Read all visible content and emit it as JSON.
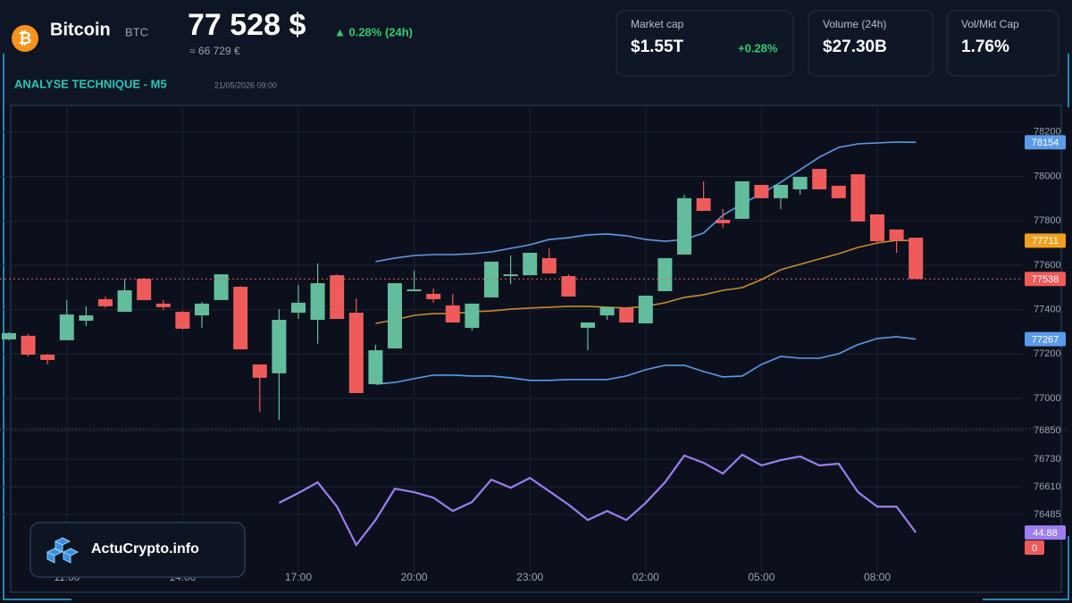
{
  "header": {
    "icon": "₿",
    "name": "Bitcoin",
    "symbol": "BTC",
    "price": "77 528 $",
    "change": "▲ 0.28% (24h)",
    "price_eur": "≈ 66 729 €",
    "section": "ANALYSE TECHNIQUE - M5",
    "date": "21/05/2026 09:00"
  },
  "stats": [
    {
      "label": "Market cap",
      "value": "$1.55T",
      "change": "+0.28%"
    },
    {
      "label": "Volume (24h)",
      "value": "$27.30B"
    },
    {
      "label": "Vol/Mkt Cap",
      "value": "1.76%"
    }
  ],
  "logo": "ActuCrypto.info",
  "chart_data": [
    {
      "type": "candlestick",
      "categories": [
        null,
        null,
        null,
        "11:00",
        null,
        null,
        null,
        null,
        null,
        "14:00",
        null,
        null,
        null,
        null,
        null,
        "17:00",
        null,
        null,
        null,
        null,
        null,
        "20:00",
        null,
        null,
        null,
        null,
        null,
        "23:00",
        null,
        null,
        null,
        null,
        null,
        "02:00",
        null,
        null,
        null,
        null,
        null,
        "05:00",
        null,
        null,
        null,
        null,
        null,
        "08:00",
        null,
        null
      ],
      "open": [
        77266,
        77282,
        77197,
        77262,
        77350,
        77447,
        77390,
        77539,
        77427,
        77390,
        77374,
        77443,
        77503,
        77153,
        77113,
        77386,
        77354,
        77555,
        77386,
        77064,
        77225,
        77483,
        77471,
        77419,
        77318,
        77455,
        77551,
        77555,
        77632,
        77551,
        77318,
        77374,
        77407,
        77338,
        77483,
        77648,
        77902,
        77805,
        77809,
        77962,
        77902,
        77942,
        78034,
        77958,
        78010,
        77829,
        77761,
        77724
      ],
      "high": [
        77298,
        77290,
        77201,
        77443,
        77415,
        77459,
        77539,
        77543,
        77443,
        77394,
        77435,
        77559,
        77507,
        77153,
        77402,
        77511,
        77608,
        77559,
        77451,
        77242,
        77519,
        77575,
        77495,
        77471,
        77427,
        77616,
        77644,
        77656,
        77676,
        77559,
        77342,
        77411,
        77407,
        77463,
        77632,
        77918,
        77978,
        77853,
        77978,
        77962,
        77962,
        77998,
        78034,
        77958,
        78010,
        77829,
        77761,
        77724
      ],
      "low": [
        77262,
        77189,
        77153,
        77262,
        77326,
        77407,
        77390,
        77443,
        77398,
        77310,
        77318,
        77443,
        77221,
        76940,
        76903,
        77358,
        77246,
        77358,
        77024,
        77064,
        77225,
        77483,
        77431,
        77342,
        77306,
        77455,
        77515,
        77555,
        77563,
        77459,
        77217,
        77354,
        77342,
        77338,
        77483,
        77648,
        77845,
        77769,
        77809,
        77902,
        77853,
        77918,
        77942,
        77902,
        77797,
        77700,
        77656,
        77538
      ],
      "close": [
        77294,
        77197,
        77173,
        77378,
        77374,
        77415,
        77487,
        77443,
        77411,
        77314,
        77427,
        77559,
        77221,
        77093,
        77354,
        77431,
        77519,
        77358,
        77024,
        77217,
        77519,
        77491,
        77447,
        77342,
        77427,
        77616,
        77559,
        77656,
        77563,
        77459,
        77342,
        77411,
        77342,
        77463,
        77632,
        77902,
        77845,
        77789,
        77978,
        77902,
        77962,
        77998,
        77942,
        77902,
        77797,
        77708,
        77712,
        77538
      ],
      "up_color": "#63bd9c",
      "down_color": "#ef5b5b",
      "series": [
        {
          "color": "#5b9bea",
          "values": [
            null,
            null,
            null,
            null,
            null,
            null,
            null,
            null,
            null,
            null,
            null,
            null,
            null,
            null,
            null,
            null,
            null,
            null,
            null,
            77616,
            77632,
            77644,
            77648,
            77648,
            77652,
            77660,
            77676,
            77692,
            77716,
            77724,
            77737,
            77741,
            77733,
            77716,
            77708,
            77716,
            77745,
            77825,
            77877,
            77922,
            77974,
            78030,
            78087,
            78131,
            78147,
            78151,
            78155,
            78154
          ]
        },
        {
          "color": "#c88a2e",
          "values": [
            null,
            null,
            null,
            null,
            null,
            null,
            null,
            null,
            null,
            null,
            null,
            null,
            null,
            null,
            null,
            null,
            null,
            null,
            null,
            77338,
            77354,
            77374,
            77382,
            77382,
            77390,
            77394,
            77402,
            77407,
            77411,
            77415,
            77415,
            77411,
            77407,
            77415,
            77431,
            77455,
            77467,
            77487,
            77499,
            77535,
            77580,
            77604,
            77628,
            77652,
            77680,
            77700,
            77712,
            77711
          ]
        },
        {
          "color": "#5b9bea",
          "values": [
            null,
            null,
            null,
            null,
            null,
            null,
            null,
            null,
            null,
            null,
            null,
            null,
            null,
            null,
            null,
            null,
            null,
            null,
            null,
            77064,
            77072,
            77089,
            77105,
            77105,
            77101,
            77101,
            77093,
            77081,
            77081,
            77085,
            77085,
            77085,
            77101,
            77129,
            77149,
            77149,
            77121,
            77097,
            77101,
            77153,
            77189,
            77181,
            77181,
            77201,
            77242,
            77270,
            77278,
            77267
          ]
        }
      ],
      "tag_colors": [
        "#5b9bea",
        "#f0a020",
        "#5b9bea"
      ],
      "ylim": [
        76863,
        78312
      ],
      "yticks": [
        77000,
        77200,
        77400,
        77600,
        77800,
        78000,
        78200
      ],
      "grid": true
    },
    {
      "type": "line",
      "series": [
        {
          "color": "#9c7ef0",
          "values": [
            null,
            null,
            null,
            null,
            null,
            null,
            null,
            null,
            null,
            null,
            null,
            null,
            null,
            null,
            55.1,
            58.5,
            62.2,
            53.8,
            40.6,
            49.2,
            60.0,
            58.8,
            56.9,
            52.3,
            55.4,
            63.1,
            60.3,
            63.7,
            59.1,
            54.5,
            49.2,
            52.3,
            49.2,
            55.1,
            62.2,
            71.4,
            68.9,
            65.2,
            71.7,
            68.0,
            69.8,
            71.1,
            68.0,
            68.6,
            58.8,
            53.8,
            53.8,
            44.88
          ]
        }
      ],
      "ylim": [
        40,
        80
      ],
      "yticks": [
        {
          "value": 80,
          "label": "76850"
        },
        {
          "value": 70.15,
          "label": "76730"
        },
        {
          "value": 60.6,
          "label": "76610"
        },
        {
          "value": 51.1,
          "label": "76485"
        }
      ],
      "zero_tag": "0",
      "grid": true
    }
  ]
}
